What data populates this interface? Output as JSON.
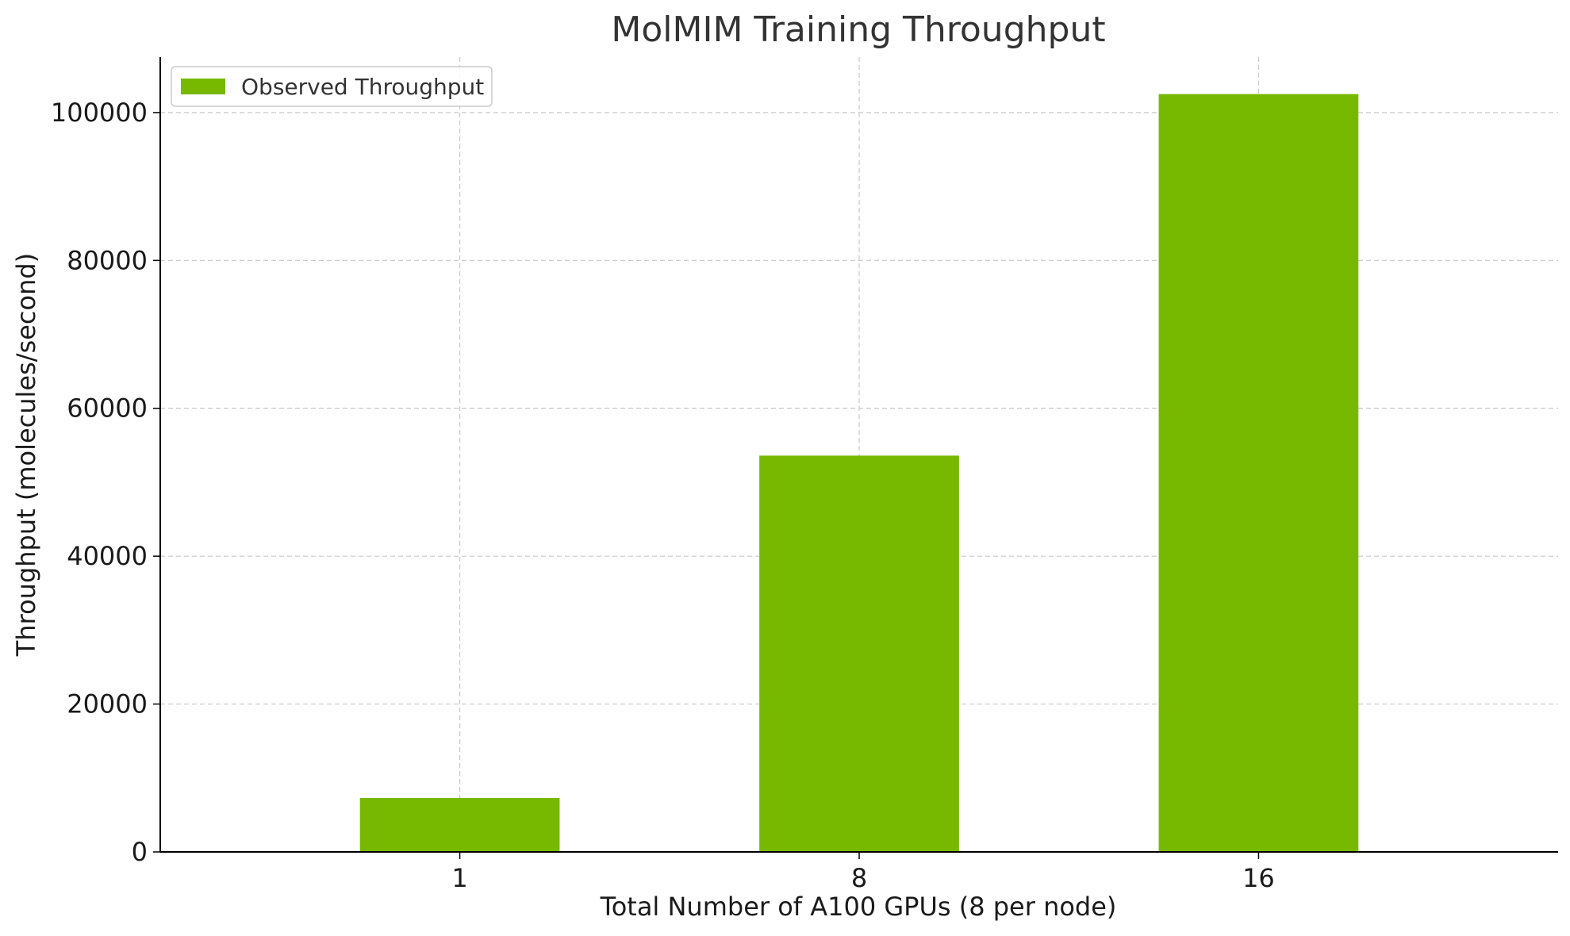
{
  "chart_data": {
    "type": "bar",
    "title": "MolMIM Training Throughput",
    "xlabel": "Total Number of A100 GPUs (8 per node)",
    "ylabel": "Throughput (molecules/second)",
    "categories": [
      "1",
      "8",
      "16"
    ],
    "series": [
      {
        "name": "Observed Throughput",
        "values": [
          7300,
          53600,
          102500
        ],
        "color": "#76b900"
      }
    ],
    "ylim": [
      0,
      107500
    ],
    "yticks": [
      0,
      20000,
      40000,
      60000,
      80000,
      100000
    ],
    "grid": true,
    "legend": "top-left"
  }
}
